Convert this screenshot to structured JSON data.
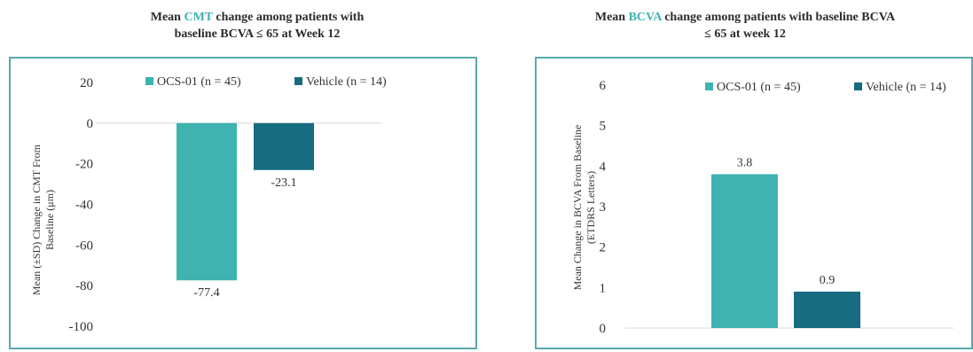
{
  "colors": {
    "series1": "#3fb3b0",
    "series2": "#176c80",
    "frame": "#5aa8ad",
    "accent": "#3fb3b0"
  },
  "chart_data": [
    {
      "type": "bar",
      "title_parts": [
        "Mean ",
        "CMT",
        " change among patients with",
        "baseline BCVA ≤ 65 at Week 12"
      ],
      "ylabel_lines": [
        "Mean (±SD) Change in CMT From",
        "Baseline (μm)"
      ],
      "ylim": [
        -100,
        20
      ],
      "yticks": [
        20,
        0,
        -20,
        -40,
        -60,
        -80,
        -100
      ],
      "ytick_labels": [
        "20",
        "0",
        "-20",
        "-40",
        "-60",
        "-80",
        "-100"
      ],
      "legend_position": "top",
      "series": [
        {
          "name": "OCS-01 (n = 45)",
          "values": [
            -77.4
          ],
          "label": "-77.4"
        },
        {
          "name": "Vehicle (n = 14)",
          "values": [
            -23.1
          ],
          "label": "-23.1"
        }
      ]
    },
    {
      "type": "bar",
      "title_parts": [
        "Mean ",
        "BCVA",
        " change among patients with baseline BCVA",
        "≤ 65 at week 12"
      ],
      "ylabel_lines": [
        "Mean Change in BCVA From Baseline",
        "(ETDRS Letters)"
      ],
      "ylim": [
        0,
        6
      ],
      "yticks": [
        6,
        5,
        4,
        3,
        2,
        1,
        0
      ],
      "ytick_labels": [
        "6",
        "5",
        "4",
        "3",
        "2",
        "1",
        "0"
      ],
      "legend_position": "top",
      "series": [
        {
          "name": "OCS-01 (n = 45)",
          "values": [
            3.8
          ],
          "label": "3.8"
        },
        {
          "name": "Vehicle (n = 14)",
          "values": [
            0.9
          ],
          "label": "0.9"
        }
      ]
    }
  ]
}
